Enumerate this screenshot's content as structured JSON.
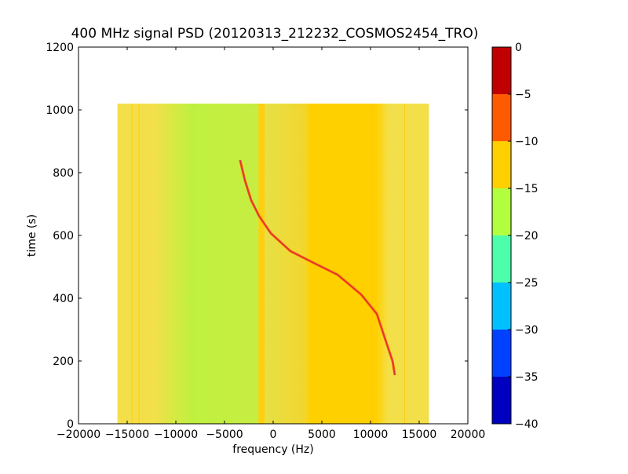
{
  "chart_data": {
    "type": "heatmap",
    "title": "400 MHz signal PSD (20120313_212232_COSMOS2454_TRO)",
    "xlabel": "frequency (Hz)",
    "ylabel": "time (s)",
    "xlim": [
      -20000,
      20000
    ],
    "ylim": [
      0,
      1200
    ],
    "xticks": [
      -20000,
      -15000,
      -10000,
      -5000,
      0,
      5000,
      10000,
      15000,
      20000
    ],
    "xtick_labels": [
      "−20000",
      "−15000",
      "−10000",
      "−5000",
      "0",
      "5000",
      "10000",
      "15000",
      "20000"
    ],
    "yticks": [
      0,
      200,
      400,
      600,
      800,
      1000,
      1200
    ],
    "ytick_labels": [
      "0",
      "200",
      "400",
      "600",
      "800",
      "1000",
      "1200"
    ],
    "data_extent": {
      "freq": [
        -16000,
        16000
      ],
      "time": [
        0,
        1020
      ]
    },
    "background_bands": [
      {
        "freq": [
          -16000,
          -11500
        ],
        "level_db": -12
      },
      {
        "freq": [
          -11500,
          -1500
        ],
        "level_db": -16
      },
      {
        "freq": [
          -1500,
          -1000
        ],
        "level_db": -11
      },
      {
        "freq": [
          -1000,
          3500
        ],
        "level_db": -14
      },
      {
        "freq": [
          3500,
          10500
        ],
        "level_db": -11
      },
      {
        "freq": [
          10500,
          16000
        ],
        "level_db": -12
      }
    ],
    "signal_trace": {
      "level_db": -3,
      "points": [
        {
          "freq": -3400,
          "time": 840
        },
        {
          "freq": -2900,
          "time": 775
        },
        {
          "freq": -2260,
          "time": 712
        },
        {
          "freq": -1450,
          "time": 662
        },
        {
          "freq": -240,
          "time": 607
        },
        {
          "freq": 1770,
          "time": 550
        },
        {
          "freq": 4190,
          "time": 512
        },
        {
          "freq": 6610,
          "time": 475
        },
        {
          "freq": 9030,
          "time": 412
        },
        {
          "freq": 10650,
          "time": 350
        },
        {
          "freq": 11450,
          "time": 275
        },
        {
          "freq": 12260,
          "time": 200
        },
        {
          "freq": 12500,
          "time": 155
        }
      ]
    },
    "colorbar": {
      "levels": [
        -40,
        -35,
        -30,
        -25,
        -20,
        -15,
        -10,
        -5,
        0
      ],
      "tick_labels": [
        "−40",
        "−35",
        "−30",
        "−25",
        "−20",
        "−15",
        "−10",
        "−5",
        "0"
      ],
      "colors": [
        "#0000c0",
        "#0040ff",
        "#00c0ff",
        "#4dffaa",
        "#b2ff40",
        "#ffd000",
        "#ff5a00",
        "#c00000"
      ]
    }
  }
}
